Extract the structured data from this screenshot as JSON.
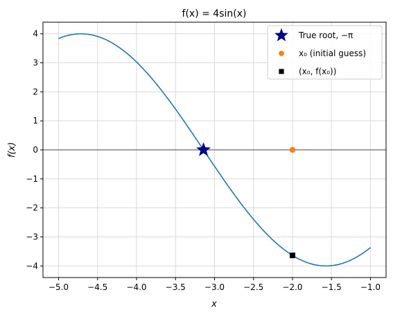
{
  "chart_data": {
    "type": "line",
    "title": "f(x) = 4sin(x)",
    "xlabel": "x",
    "ylabel": "f(x)",
    "xlim": [
      -5.2,
      -0.8
    ],
    "ylim": [
      -4.4,
      4.4
    ],
    "xticks": [
      -5.0,
      -4.5,
      -4.0,
      -3.5,
      -3.0,
      -2.5,
      -2.0,
      -1.5,
      -1.0
    ],
    "xtick_labels": [
      "−5.0",
      "−4.5",
      "−4.0",
      "−3.5",
      "−3.0",
      "−2.5",
      "−2.0",
      "−1.5",
      "−1.0"
    ],
    "yticks": [
      -4,
      -3,
      -2,
      -1,
      0,
      1,
      2,
      3,
      4
    ],
    "ytick_labels": [
      "−4",
      "−3",
      "−2",
      "−1",
      "0",
      "1",
      "2",
      "3",
      "4"
    ],
    "grid": true,
    "legend_position": "top-right",
    "function": {
      "amplitude": 4,
      "x_start": -5.0,
      "x_end": -1.0,
      "color": "#1f77b4"
    },
    "hline": {
      "y": 0,
      "color": "#808080"
    },
    "points": [
      {
        "name": "True root, −π",
        "marker": "star",
        "color": "#00008b",
        "x": -3.14159,
        "y": 0
      },
      {
        "name": "x₀ (initial guess)",
        "marker": "circle",
        "color": "#ff7f0e",
        "x": -2.0,
        "y": 0
      },
      {
        "name": "(x₀, f(x₀))",
        "marker": "square",
        "color": "#000000",
        "x": -2.0,
        "y": -3.637
      }
    ]
  }
}
